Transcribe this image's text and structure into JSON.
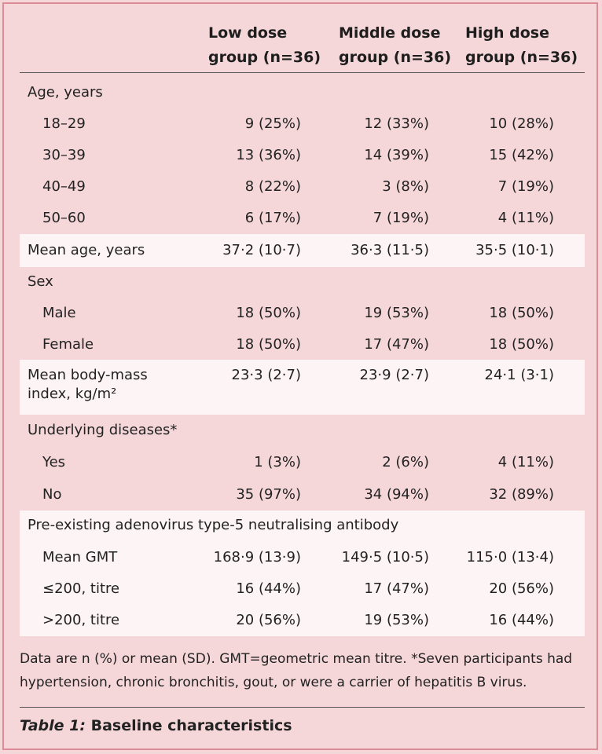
{
  "header": {
    "col1": [
      "Low dose",
      "group (n=36)"
    ],
    "col2": [
      "Middle dose",
      "group (n=36)"
    ],
    "col3": [
      "High dose",
      "group (n=36)"
    ]
  },
  "rows": [
    {
      "label": "Age, years",
      "kind": "cat",
      "values": [
        "",
        "",
        ""
      ]
    },
    {
      "label": "18–29",
      "kind": "sub",
      "values": [
        "9 (25%)",
        "12 (33%)",
        "10 (28%)"
      ]
    },
    {
      "label": "30–39",
      "kind": "sub",
      "values": [
        "13 (36%)",
        "14 (39%)",
        "15 (42%)"
      ]
    },
    {
      "label": "40–49",
      "kind": "sub",
      "values": [
        "8 (22%)",
        "3 (8%)",
        "7 (19%)"
      ]
    },
    {
      "label": "50–60",
      "kind": "sub",
      "values": [
        "6 (17%)",
        "7 (19%)",
        "4 (11%)"
      ]
    },
    {
      "label": "Mean age, years",
      "kind": "cat",
      "values": [
        "37·2 (10·7)",
        "36·3 (11·5)",
        "35·5 (10·1)"
      ]
    },
    {
      "label": "Sex",
      "kind": "cat",
      "values": [
        "",
        "",
        ""
      ]
    },
    {
      "label": "Male",
      "kind": "sub",
      "values": [
        "18 (50%)",
        "19 (53%)",
        "18 (50%)"
      ]
    },
    {
      "label": "Female",
      "kind": "sub",
      "values": [
        "18 (50%)",
        "17 (47%)",
        "18 (50%)"
      ]
    },
    {
      "label": "Mean body-mass index, kg/m²",
      "kind": "cat",
      "values": [
        "23·3 (2·7)",
        "23·9 (2·7)",
        "24·1 (3·1)"
      ]
    },
    {
      "label": "Underlying diseases*",
      "kind": "cat",
      "values": [
        "",
        "",
        ""
      ]
    },
    {
      "label": "Yes",
      "kind": "sub",
      "values": [
        "1 (3%)",
        "2 (6%)",
        "4 (11%)"
      ]
    },
    {
      "label": "No",
      "kind": "sub",
      "values": [
        "35 (97%)",
        "34 (94%)",
        "32 (89%)"
      ]
    },
    {
      "label": "Pre-existing adenovirus type-5 neutralising antibody",
      "kind": "cat",
      "values": [
        "",
        "",
        ""
      ]
    },
    {
      "label": "Mean GMT",
      "kind": "sub",
      "values": [
        "168·9 (13·9)",
        "149·5 (10·5)",
        "115·0 (13·4)"
      ]
    },
    {
      "label": "≤200, titre",
      "kind": "sub",
      "values": [
        "16 (44%)",
        "17 (47%)",
        "20 (56%)"
      ]
    },
    {
      "label": ">200, titre",
      "kind": "sub",
      "values": [
        "20 (56%)",
        "19 (53%)",
        "16 (44%)"
      ]
    }
  ],
  "footnote": "Data are n (%) or mean (SD). GMT=geometric mean titre. *Seven participants had hypertension, chronic bronchitis, gout, or were a carrier of hepatitis B virus.",
  "caption": {
    "label": "Table 1:",
    "title": " Baseline characteristics"
  },
  "colors": {
    "background": "#f5d7d9",
    "band": "#fdf4f5",
    "border": "#dc8c96"
  }
}
